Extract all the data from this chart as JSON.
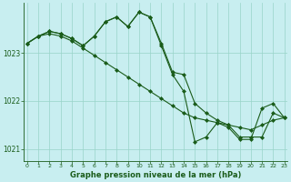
{
  "title": "Graphe pression niveau de la mer (hPa)",
  "bg_color": "#c8eef0",
  "grid_color": "#98d4c8",
  "line_color": "#1a5c1a",
  "marker_color": "#1a5c1a",
  "x_ticks": [
    0,
    1,
    2,
    3,
    4,
    5,
    6,
    7,
    8,
    9,
    10,
    11,
    12,
    13,
    14,
    15,
    16,
    17,
    18,
    19,
    20,
    21,
    22,
    23
  ],
  "xlim": [
    -0.3,
    23.3
  ],
  "ylim": [
    1020.75,
    1024.05
  ],
  "yticks": [
    1021,
    1022,
    1023
  ],
  "series": [
    {
      "x": [
        0,
        1,
        2,
        3,
        4,
        5,
        6,
        7,
        8,
        9,
        10,
        11,
        12,
        13,
        14,
        15,
        16,
        17,
        18,
        19,
        20,
        21,
        22,
        23
      ],
      "y": [
        1023.2,
        1023.35,
        1023.4,
        1023.35,
        1023.25,
        1023.1,
        1022.95,
        1022.8,
        1022.65,
        1022.5,
        1022.35,
        1022.2,
        1022.05,
        1021.9,
        1021.75,
        1021.65,
        1021.6,
        1021.55,
        1021.5,
        1021.45,
        1021.4,
        1021.5,
        1021.6,
        1021.65
      ]
    },
    {
      "x": [
        0,
        1,
        2,
        3,
        4,
        5,
        6,
        7,
        8,
        9,
        10,
        11,
        12,
        13,
        14,
        15,
        16,
        17,
        18,
        19,
        20,
        21,
        22,
        23
      ],
      "y": [
        1023.2,
        1023.35,
        1023.45,
        1023.4,
        1023.3,
        1023.15,
        1023.35,
        1023.65,
        1023.75,
        1023.55,
        1023.85,
        1023.75,
        1023.15,
        1022.55,
        1022.2,
        1021.15,
        1021.25,
        1021.55,
        1021.45,
        1021.2,
        1021.2,
        1021.85,
        1021.95,
        1021.65
      ]
    },
    {
      "x": [
        0,
        1,
        2,
        3,
        4,
        5,
        6,
        7,
        8,
        9,
        10,
        11,
        12,
        13,
        14,
        15,
        16,
        17,
        18,
        19,
        20,
        21,
        22,
        23
      ],
      "y": [
        1023.2,
        1023.35,
        1023.45,
        1023.4,
        1023.3,
        1023.15,
        1023.35,
        1023.65,
        1023.75,
        1023.55,
        1023.85,
        1023.75,
        1023.2,
        1022.6,
        1022.55,
        1021.95,
        1021.75,
        1021.6,
        1021.5,
        1021.25,
        1021.25,
        1021.25,
        1021.75,
        1021.65
      ]
    }
  ]
}
